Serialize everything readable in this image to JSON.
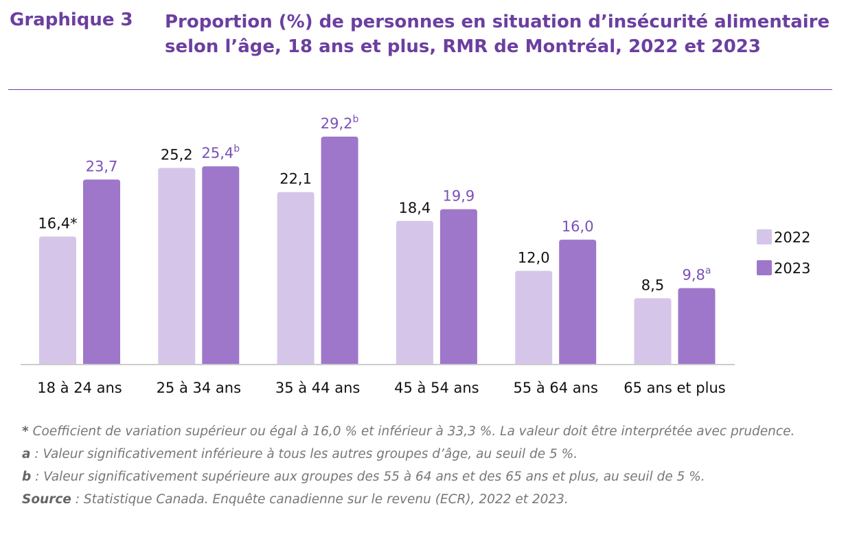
{
  "chart_data": {
    "type": "bar",
    "figure_label": "Graphique 3",
    "title": "Proportion (%) de personnes en situation d’insécurité alimentaire selon l’âge, 18 ans et plus, RMR de Montréal, 2022 et 2023",
    "categories": [
      "18 à 24 ans",
      "25 à 34 ans",
      "35 à 44 ans",
      "45 à 54 ans",
      "55 à 64 ans",
      "65 ans et plus"
    ],
    "series": [
      {
        "name": "2022",
        "color": "#d5c6e9",
        "values": [
          16.4,
          25.2,
          22.1,
          18.4,
          12.0,
          8.5
        ],
        "value_labels": [
          "16,4*",
          "25,2",
          "22,1",
          "18,4",
          "12,0",
          "8,5"
        ]
      },
      {
        "name": "2023",
        "color": "#9e77ca",
        "values": [
          23.7,
          25.4,
          29.2,
          19.9,
          16.0,
          9.8
        ],
        "value_labels": [
          "23,7",
          "25,4",
          "29,2",
          "19,9",
          "16,0",
          "9,8"
        ],
        "value_label_notes": [
          null,
          "b",
          "b",
          null,
          null,
          "a"
        ]
      }
    ],
    "legend": "right",
    "notes": [
      {
        "marker": "*",
        "text": " Coefficient de variation supérieur ou égal à 16,0 % et inférieur à 33,3 %. La valeur doit être interprétée avec prudence."
      },
      {
        "marker": "a",
        "text": " : Valeur significativement inférieure à tous les autres groupes d’âge, au seuil de 5 %."
      },
      {
        "marker": "b",
        "text": " : Valeur significativement supérieure aux groupes des 55 à 64 ans et des 65 ans et plus, au seuil de 5 %."
      },
      {
        "marker": "Source",
        "text": " : Statistique Canada. Enquête canadienne sur le revenu (ECR), 2022 et 2023."
      }
    ]
  }
}
